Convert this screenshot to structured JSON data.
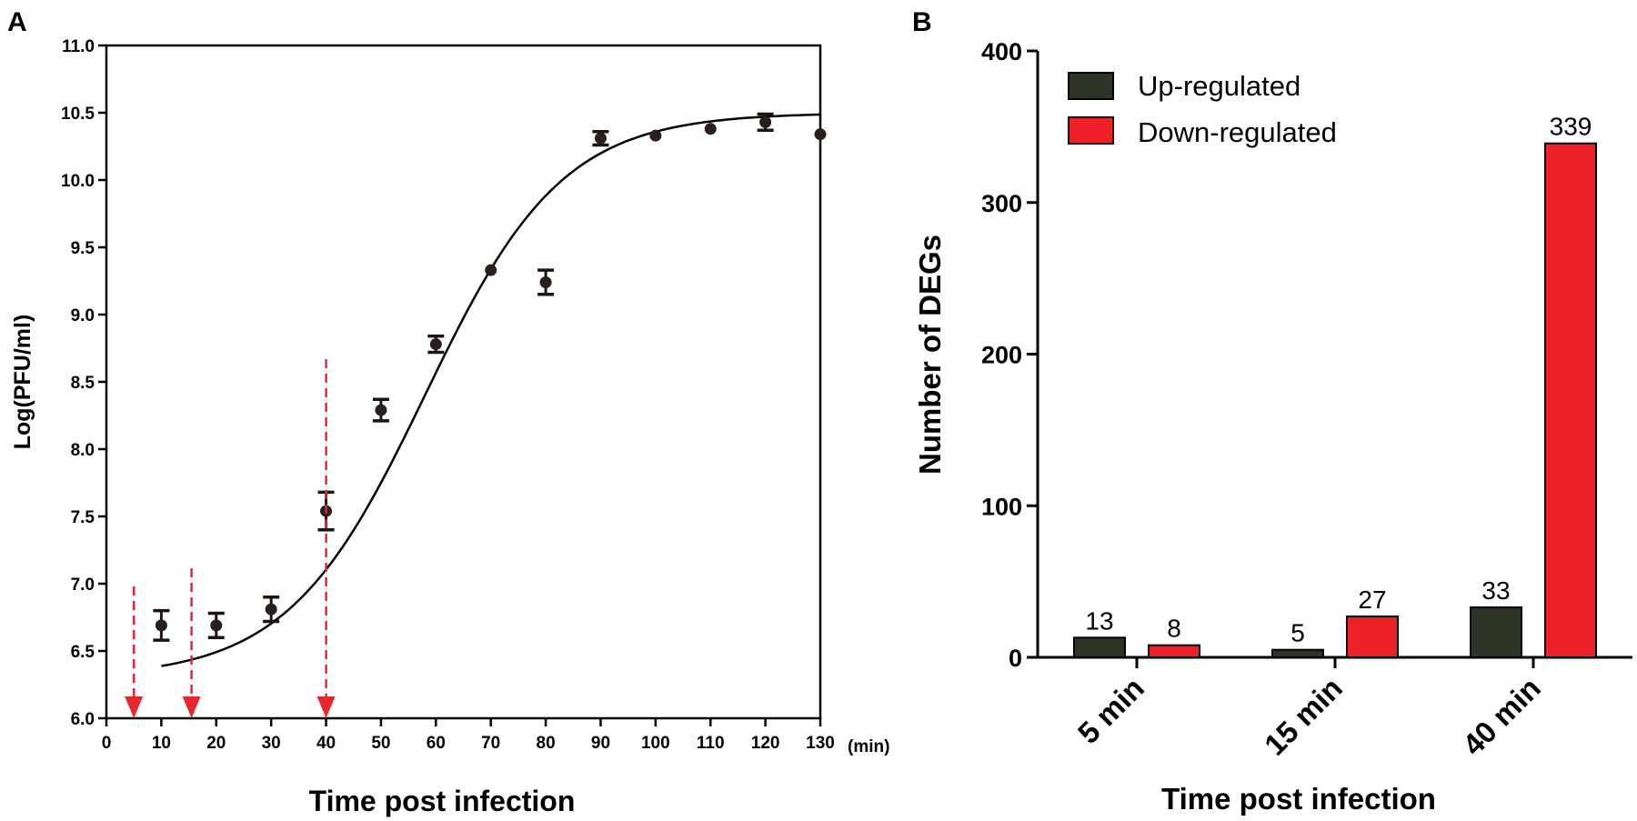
{
  "chart_data": [
    {
      "panel": "A",
      "type": "scatter",
      "xlabel": "Time post infection",
      "x_unit_label": "(min)",
      "ylabel": "Log(PFU/ml)",
      "xlim": [
        0,
        130
      ],
      "ylim": [
        6.0,
        11.0
      ],
      "xticks": [
        0,
        10,
        20,
        30,
        40,
        50,
        60,
        70,
        80,
        90,
        100,
        110,
        120,
        130
      ],
      "yticks": [
        "6.0",
        "6.5",
        "7.0",
        "7.5",
        "8.0",
        "8.5",
        "9.0",
        "9.5",
        "10.0",
        "10.5",
        "11.0"
      ],
      "points": [
        {
          "x": 10,
          "y": 6.69,
          "err": 0.11
        },
        {
          "x": 20,
          "y": 6.69,
          "err": 0.09
        },
        {
          "x": 30,
          "y": 6.81,
          "err": 0.09
        },
        {
          "x": 40,
          "y": 7.54,
          "err": 0.14
        },
        {
          "x": 50,
          "y": 8.29,
          "err": 0.08
        },
        {
          "x": 60,
          "y": 8.78,
          "err": 0.06
        },
        {
          "x": 70,
          "y": 9.33,
          "err": 0
        },
        {
          "x": 80,
          "y": 9.24,
          "err": 0.09
        },
        {
          "x": 90,
          "y": 10.31,
          "err": 0.05
        },
        {
          "x": 100,
          "y": 10.33,
          "err": 0
        },
        {
          "x": 110,
          "y": 10.38,
          "err": 0
        },
        {
          "x": 120,
          "y": 10.43,
          "err": 0.06
        },
        {
          "x": 130,
          "y": 10.34,
          "err": 0
        }
      ],
      "fit_curve": {
        "model": "sigmoid",
        "x_range": [
          10,
          130
        ],
        "bottom": 6.3,
        "top": 10.5,
        "midpoint": 58,
        "slope": 12.5
      },
      "annotations": [
        {
          "kind": "red-dashed-arrow",
          "x": 5
        },
        {
          "kind": "red-dashed-arrow",
          "x": 15.5
        },
        {
          "kind": "red-dashed-arrow",
          "x": 40
        }
      ]
    },
    {
      "panel": "B",
      "type": "bar",
      "xlabel": "Time post infection",
      "ylabel": "Number of DEGs",
      "ylim": [
        0,
        400
      ],
      "yticks": [
        "0",
        "100",
        "200",
        "300",
        "400"
      ],
      "categories": [
        "5 min",
        "15 min",
        "40 min"
      ],
      "series": [
        {
          "name": "Up-regulated",
          "color": "#2d3526",
          "values": [
            13,
            5,
            33
          ]
        },
        {
          "name": "Down-regulated",
          "color": "#ee2129",
          "values": [
            8,
            27,
            339
          ]
        }
      ],
      "legend_position": "top-left"
    }
  ]
}
